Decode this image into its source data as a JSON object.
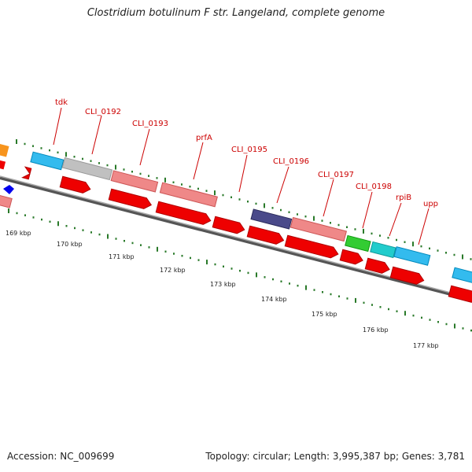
{
  "title": "Clostridium botulinum F str. Langeland, complete genome",
  "footer": {
    "accession": "Accession: NC_009699",
    "topology": "Topology: circular; Length: 3,995,387 bp; Genes: 3,781"
  },
  "colors": {
    "gene_label": "#cc0000",
    "cds_red": "#ee0000",
    "tick_green": "#2a7a2a",
    "backbone": "#888888"
  },
  "gene_labels": [
    "tdk",
    "CLI_0192",
    "CLI_0193",
    "prfA",
    "CLI_0195",
    "CLI_0196",
    "CLI_0197",
    "CLI_0198",
    "rpiB",
    "upp"
  ],
  "scale_labels": [
    "169 kbp",
    "170 kbp",
    "171 kbp",
    "172 kbp",
    "173 kbp",
    "174 kbp",
    "175 kbp",
    "176 kbp",
    "177 kbp"
  ]
}
